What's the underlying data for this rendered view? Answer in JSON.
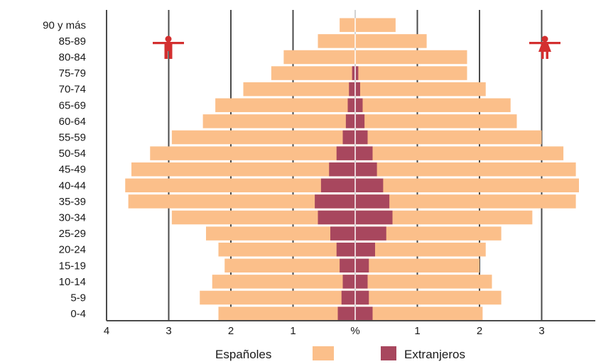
{
  "chart_data": {
    "type": "bar",
    "orientation": "horizontal-pyramid",
    "categories": [
      "90 y más",
      "85-89",
      "80-84",
      "75-79",
      "70-74",
      "65-69",
      "60-64",
      "55-59",
      "50-54",
      "45-49",
      "40-44",
      "35-39",
      "30-34",
      "25-29",
      "20-24",
      "15-19",
      "10-14",
      "5-9",
      "0-4"
    ],
    "series": [
      {
        "name": "Españoles",
        "color": "#fbbf8a",
        "left": [
          0.25,
          0.6,
          1.15,
          1.35,
          1.8,
          2.25,
          2.45,
          2.95,
          3.3,
          3.6,
          3.7,
          3.65,
          2.95,
          2.4,
          2.2,
          2.1,
          2.3,
          2.5,
          2.2
        ],
        "right": [
          0.65,
          1.15,
          1.8,
          1.8,
          2.1,
          2.5,
          2.6,
          3.0,
          3.35,
          3.55,
          3.6,
          3.55,
          2.85,
          2.35,
          2.1,
          2.0,
          2.2,
          2.35,
          2.05
        ]
      },
      {
        "name": "Extranjeros",
        "color": "#a8475e",
        "left": [
          0.0,
          0.0,
          0.0,
          0.05,
          0.1,
          0.12,
          0.15,
          0.2,
          0.3,
          0.42,
          0.55,
          0.65,
          0.6,
          0.4,
          0.3,
          0.25,
          0.2,
          0.22,
          0.28
        ],
        "right": [
          0.0,
          0.0,
          0.0,
          0.05,
          0.08,
          0.12,
          0.15,
          0.2,
          0.28,
          0.35,
          0.45,
          0.55,
          0.6,
          0.5,
          0.32,
          0.22,
          0.2,
          0.22,
          0.28
        ]
      }
    ],
    "x_ticks": [
      {
        "value": -4,
        "label": "4"
      },
      {
        "value": -3,
        "label": "3"
      },
      {
        "value": -2,
        "label": "2"
      },
      {
        "value": -1,
        "label": "1"
      },
      {
        "value": 0,
        "label": "%"
      },
      {
        "value": 1,
        "label": "1"
      },
      {
        "value": 2,
        "label": "2"
      },
      {
        "value": 3,
        "label": "3"
      }
    ],
    "xlim": [
      -4,
      3.6
    ],
    "grid": true,
    "legend": {
      "placement": "bottom",
      "entries": [
        "Españoles",
        "Extranjeros"
      ]
    },
    "icons": {
      "left": "male-icon",
      "right": "female-icon",
      "color": "#d32f2f"
    },
    "axis_color": "#4a4a4a"
  }
}
